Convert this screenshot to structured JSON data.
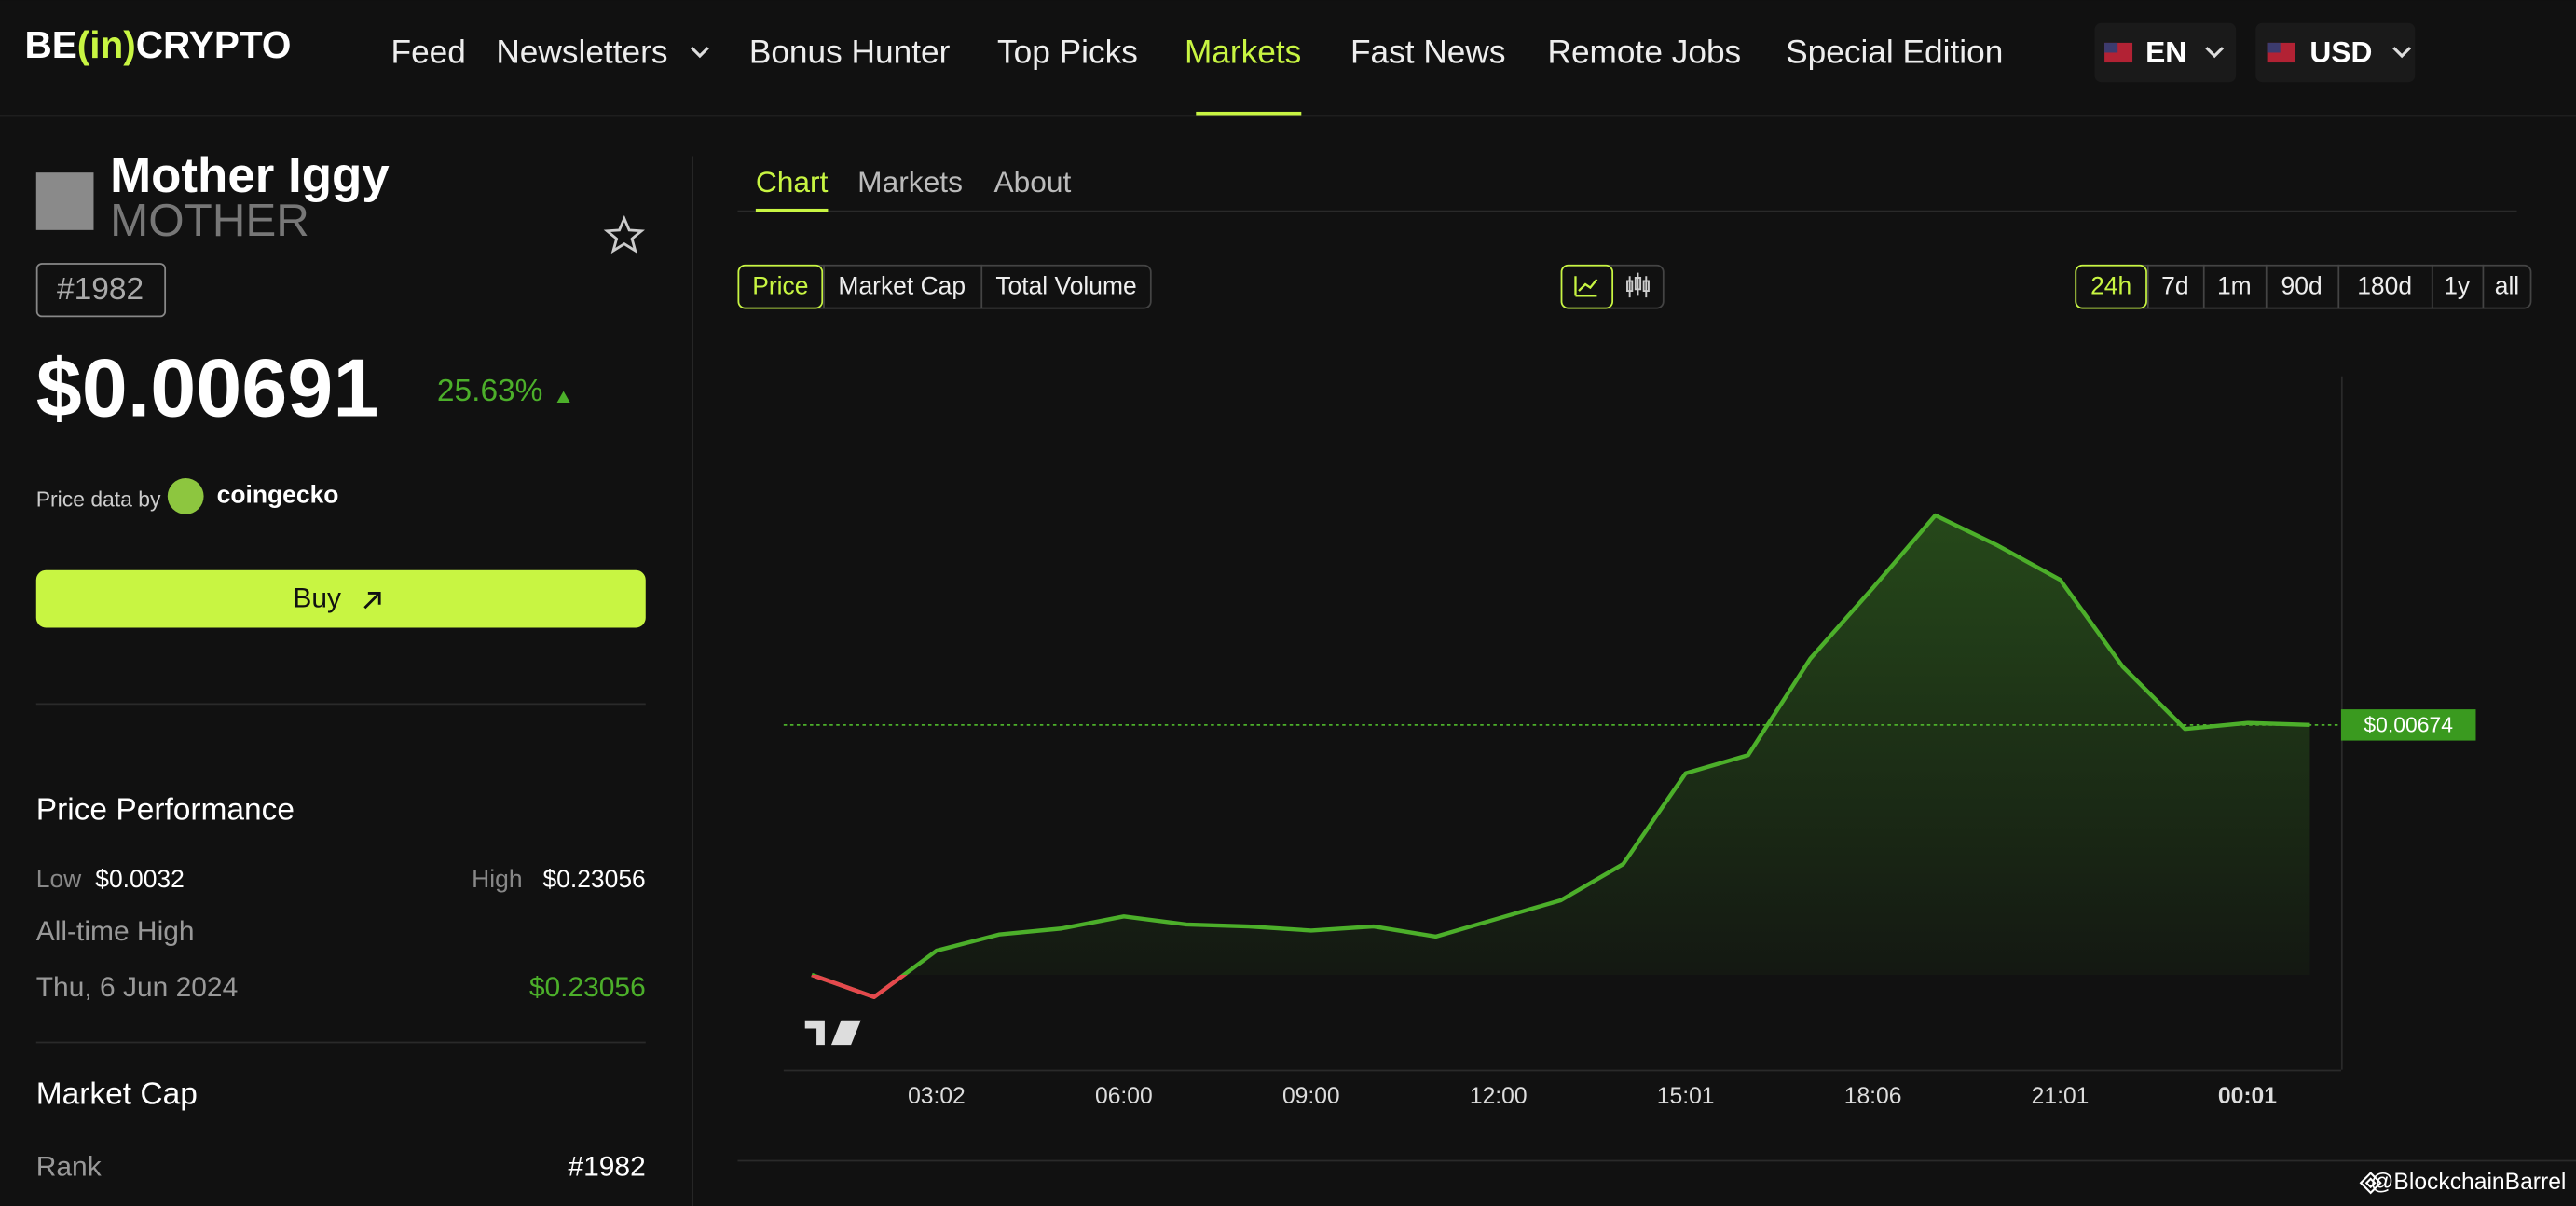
{
  "header": {
    "logo": [
      "BE",
      "(in)",
      "CRYPTO"
    ],
    "nav": [
      "Feed",
      "Newsletters",
      "Bonus Hunter",
      "Top Picks",
      "Markets",
      "Fast News",
      "Remote Jobs",
      "Special Edition"
    ],
    "active_nav": 4,
    "language": "EN",
    "currency": "USD"
  },
  "coin": {
    "name": "Mother Iggy",
    "symbol": "MOTHER",
    "rank_badge": "#1982",
    "price": "$0.00691",
    "change": "25.63%",
    "price_data_by": "Price data by",
    "source": "coingecko",
    "buy": "Buy"
  },
  "performance": {
    "title": "Price Performance",
    "low_label": "Low",
    "low": "$0.0032",
    "high_label": "High",
    "high": "$0.23056",
    "ath_label": "All-time High",
    "ath_date": "Thu, 6 Jun 2024",
    "ath": "$0.23056"
  },
  "market_cap": {
    "title": "Market Cap",
    "rank_label": "Rank",
    "rank": "#1982"
  },
  "tabs": [
    "Chart",
    "Markets",
    "About"
  ],
  "active_tab": 0,
  "metric_buttons": [
    "Price",
    "Market Cap",
    "Total Volume"
  ],
  "active_metric": 0,
  "ranges": [
    "24h",
    "7d",
    "1m",
    "90d",
    "180d",
    "1y",
    "all"
  ],
  "active_range": 0,
  "watermark": "@BlockchainBarrel",
  "chart_data": {
    "type": "line",
    "x": [
      1,
      2,
      3,
      4,
      5,
      6,
      7,
      8,
      9,
      10,
      11,
      12,
      13,
      14,
      15,
      16,
      17,
      18,
      19,
      20,
      21,
      22,
      23,
      24,
      25
    ],
    "series": [
      {
        "color": "#4caf2a",
        "down_color": "#e5484d",
        "values": [
          0.0055,
          0.00539,
          0.00562,
          0.0057,
          0.00573,
          0.00579,
          0.00575,
          0.00574,
          0.00572,
          0.00574,
          0.00569,
          0.00578,
          0.00587,
          0.00605,
          0.0065,
          0.00659,
          0.00707,
          0.00742,
          0.00778,
          0.00763,
          0.00746,
          0.00703,
          0.00672,
          0.00675,
          0.00674
        ]
      }
    ],
    "xlim": [
      0.55,
      25.5
    ],
    "ylim": [
      0.00503,
      0.00847
    ],
    "xticks": [
      {
        "value": 3,
        "label": "03:02"
      },
      {
        "value": 6,
        "label": "06:00"
      },
      {
        "value": 9,
        "label": "09:00"
      },
      {
        "value": 12,
        "label": "12:00"
      },
      {
        "value": 15,
        "label": "15:01"
      },
      {
        "value": 18,
        "label": "18:06"
      },
      {
        "value": 21,
        "label": "21:01"
      },
      {
        "value": 24,
        "label": "00:01"
      }
    ],
    "last_price": {
      "value": 0.00674,
      "label": "$0.00674"
    },
    "grid": false
  }
}
